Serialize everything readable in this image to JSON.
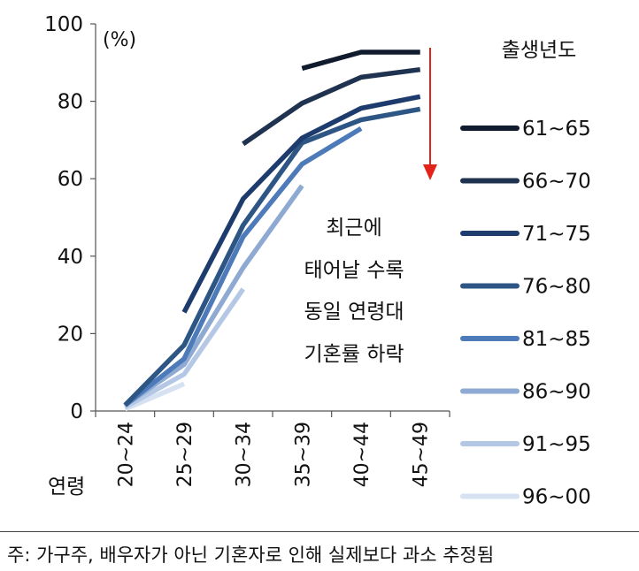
{
  "chart_data": {
    "type": "line",
    "unit_label": "(%)",
    "xlabel": "연령",
    "categories": [
      "20~24",
      "25~29",
      "30~34",
      "35~39",
      "40~44",
      "45~49"
    ],
    "ylim": [
      0,
      100
    ],
    "yticks": [
      0,
      20,
      40,
      60,
      80,
      100
    ],
    "legend_title": "출생년도",
    "legend_position": "right",
    "series": [
      {
        "name": "61~65",
        "color": "#111b2e",
        "values": [
          null,
          null,
          null,
          88.5,
          92.7,
          92.7
        ]
      },
      {
        "name": "66~70",
        "color": "#1f3350",
        "values": [
          null,
          null,
          69,
          79.5,
          86.2,
          88.2
        ]
      },
      {
        "name": "71~75",
        "color": "#1d3c6d",
        "values": [
          null,
          25.5,
          54.8,
          70.5,
          78.2,
          81.2
        ]
      },
      {
        "name": "76~80",
        "color": "#2e5685",
        "values": [
          1.5,
          17,
          48,
          69.3,
          75.2,
          78
        ]
      },
      {
        "name": "81~85",
        "color": "#4d7ab8",
        "values": [
          1.5,
          13.5,
          45,
          63.8,
          73,
          null
        ]
      },
      {
        "name": "86~90",
        "color": "#8eaad2",
        "values": [
          1.5,
          12,
          37,
          58.2,
          null,
          null
        ]
      },
      {
        "name": "91~95",
        "color": "#b4c8e6",
        "values": [
          1,
          9.5,
          31.5,
          null,
          null,
          null
        ]
      },
      {
        "name": "96~00",
        "color": "#d6e1f1",
        "values": [
          0.5,
          7,
          null,
          null,
          null,
          null
        ]
      }
    ],
    "annotation": [
      "최근에",
      "태어날 수록",
      "동일 연령대",
      "기혼률 하락"
    ],
    "arrow_color": "#e2231a"
  },
  "footnote": "주: 가구주, 배우자가 아닌 기혼자로 인해 실제보다 과소 추정됨"
}
